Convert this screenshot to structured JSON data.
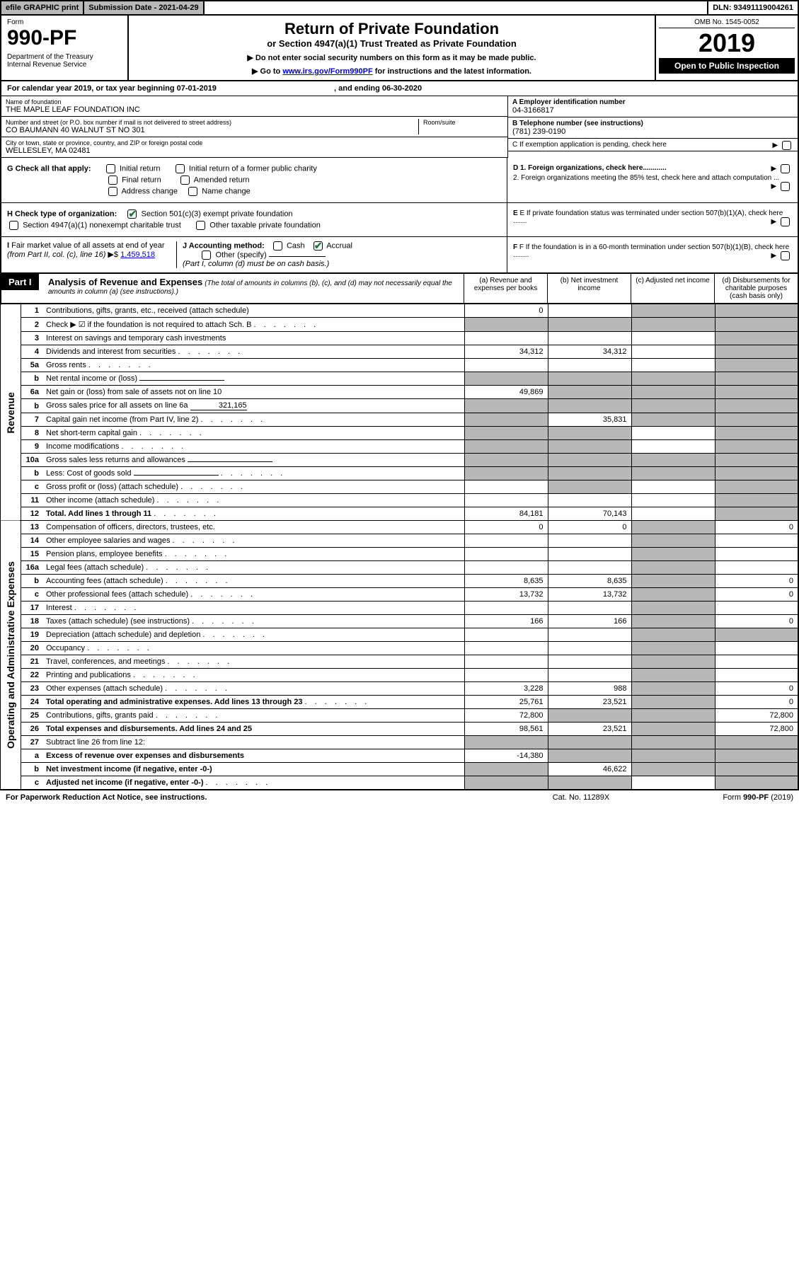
{
  "topbar": {
    "efile": "efile GRAPHIC print",
    "subdate": "Submission Date - 2021-04-29",
    "dln": "DLN: 93491119004261"
  },
  "header": {
    "form_label": "Form",
    "form_num": "990-PF",
    "dept": "Department of the Treasury\nInternal Revenue Service",
    "title": "Return of Private Foundation",
    "subtitle": "or Section 4947(a)(1) Trust Treated as Private Foundation",
    "note1": "▶ Do not enter social security numbers on this form as it may be made public.",
    "note2_prefix": "▶ Go to ",
    "note2_link": "www.irs.gov/Form990PF",
    "note2_suffix": " for instructions and the latest information.",
    "omb": "OMB No. 1545-0052",
    "year": "2019",
    "open": "Open to Public Inspection"
  },
  "calyear": {
    "prefix": "For calendar year 2019, or tax year beginning 07-01-2019",
    "suffix": ", and ending 06-30-2020"
  },
  "info": {
    "name_label": "Name of foundation",
    "name": "THE MAPLE LEAF FOUNDATION INC",
    "addr_label": "Number and street (or P.O. box number if mail is not delivered to street address)",
    "addr": "CO BAUMANN 40 WALNUT ST NO 301",
    "room_label": "Room/suite",
    "city_label": "City or town, state or province, country, and ZIP or foreign postal code",
    "city": "WELLESLEY, MA  02481",
    "ein_label": "A Employer identification number",
    "ein": "04-3166817",
    "phone_label": "B Telephone number (see instructions)",
    "phone": "(781) 239-0190",
    "c_label": "C If exemption application is pending, check here"
  },
  "checks": {
    "g_label": "G Check all that apply:",
    "g_opts": [
      "Initial return",
      "Initial return of a former public charity",
      "Final return",
      "Amended return",
      "Address change",
      "Name change"
    ],
    "h_label": "H Check type of organization:",
    "h_opt1": "Section 501(c)(3) exempt private foundation",
    "h_opt2": "Section 4947(a)(1) nonexempt charitable trust",
    "h_opt3": "Other taxable private foundation",
    "i_label": "I Fair market value of all assets at end of year (from Part II, col. (c), line 16) ▶$ ",
    "i_val": "1,459,518",
    "j_label": "J Accounting method:",
    "j_opts": [
      "Cash",
      "Accrual"
    ],
    "j_other": "Other (specify)",
    "j_note": "(Part I, column (d) must be on cash basis.)",
    "d1": "D 1. Foreign organizations, check here............",
    "d2": "2. Foreign organizations meeting the 85% test, check here and attach computation ...",
    "e": "E If private foundation status was terminated under section 507(b)(1)(A), check here .......",
    "f": "F If the foundation is in a 60-month termination under section 507(b)(1)(B), check here ........"
  },
  "part1": {
    "label": "Part I",
    "title": "Analysis of Revenue and Expenses",
    "note": "(The total of amounts in columns (b), (c), and (d) may not necessarily equal the amounts in column (a) (see instructions).)",
    "col_a": "(a)   Revenue and expenses per books",
    "col_b": "(b)  Net investment income",
    "col_c": "(c)  Adjusted net income",
    "col_d": "(d)  Disbursements for charitable purposes (cash basis only)"
  },
  "section_labels": {
    "revenue": "Revenue",
    "expenses": "Operating and Administrative Expenses"
  },
  "rows": [
    {
      "n": "1",
      "desc": "Contributions, gifts, grants, etc., received (attach schedule)",
      "a": "0",
      "b": "",
      "c": "s",
      "d": "s"
    },
    {
      "n": "2",
      "desc": "Check ▶ ☑ if the foundation is not required to attach Sch. B",
      "dots": true,
      "a": "s",
      "b": "s",
      "c": "s",
      "d": "s"
    },
    {
      "n": "3",
      "desc": "Interest on savings and temporary cash investments",
      "a": "",
      "b": "",
      "c": "",
      "d": "s"
    },
    {
      "n": "4",
      "desc": "Dividends and interest from securities",
      "dots": true,
      "a": "34,312",
      "b": "34,312",
      "c": "",
      "d": "s"
    },
    {
      "n": "5a",
      "desc": "Gross rents",
      "dots": true,
      "a": "",
      "b": "",
      "c": "",
      "d": "s"
    },
    {
      "n": "b",
      "desc": "Net rental income or (loss)",
      "inline": true,
      "a": "s",
      "b": "s",
      "c": "s",
      "d": "s"
    },
    {
      "n": "6a",
      "desc": "Net gain or (loss) from sale of assets not on line 10",
      "a": "49,869",
      "b": "s",
      "c": "s",
      "d": "s"
    },
    {
      "n": "b",
      "desc": "Gross sales price for all assets on line 6a",
      "inline_val": "321,165",
      "a": "s",
      "b": "s",
      "c": "s",
      "d": "s"
    },
    {
      "n": "7",
      "desc": "Capital gain net income (from Part IV, line 2)",
      "dots": true,
      "a": "s",
      "b": "35,831",
      "c": "s",
      "d": "s"
    },
    {
      "n": "8",
      "desc": "Net short-term capital gain",
      "dots": true,
      "a": "s",
      "b": "s",
      "c": "",
      "d": "s"
    },
    {
      "n": "9",
      "desc": "Income modifications",
      "dots": true,
      "a": "s",
      "b": "s",
      "c": "",
      "d": "s"
    },
    {
      "n": "10a",
      "desc": "Gross sales less returns and allowances",
      "inline": true,
      "a": "s",
      "b": "s",
      "c": "s",
      "d": "s"
    },
    {
      "n": "b",
      "desc": "Less: Cost of goods sold",
      "dots": true,
      "inline": true,
      "a": "s",
      "b": "s",
      "c": "s",
      "d": "s"
    },
    {
      "n": "c",
      "desc": "Gross profit or (loss) (attach schedule)",
      "dots": true,
      "a": "",
      "b": "s",
      "c": "",
      "d": "s"
    },
    {
      "n": "11",
      "desc": "Other income (attach schedule)",
      "dots": true,
      "a": "",
      "b": "",
      "c": "",
      "d": "s"
    },
    {
      "n": "12",
      "desc": "Total. Add lines 1 through 11",
      "bold": true,
      "dots": true,
      "a": "84,181",
      "b": "70,143",
      "c": "",
      "d": "s"
    },
    {
      "n": "13",
      "desc": "Compensation of officers, directors, trustees, etc.",
      "a": "0",
      "b": "0",
      "c": "s",
      "d": "0"
    },
    {
      "n": "14",
      "desc": "Other employee salaries and wages",
      "dots": true,
      "a": "",
      "b": "",
      "c": "s",
      "d": ""
    },
    {
      "n": "15",
      "desc": "Pension plans, employee benefits",
      "dots": true,
      "a": "",
      "b": "",
      "c": "s",
      "d": ""
    },
    {
      "n": "16a",
      "desc": "Legal fees (attach schedule)",
      "dots": true,
      "a": "",
      "b": "",
      "c": "s",
      "d": ""
    },
    {
      "n": "b",
      "desc": "Accounting fees (attach schedule)",
      "dots": true,
      "a": "8,635",
      "b": "8,635",
      "c": "s",
      "d": "0"
    },
    {
      "n": "c",
      "desc": "Other professional fees (attach schedule)",
      "dots": true,
      "a": "13,732",
      "b": "13,732",
      "c": "s",
      "d": "0"
    },
    {
      "n": "17",
      "desc": "Interest",
      "dots": true,
      "a": "",
      "b": "",
      "c": "s",
      "d": ""
    },
    {
      "n": "18",
      "desc": "Taxes (attach schedule) (see instructions)",
      "dots": true,
      "a": "166",
      "b": "166",
      "c": "s",
      "d": "0"
    },
    {
      "n": "19",
      "desc": "Depreciation (attach schedule) and depletion",
      "dots": true,
      "a": "",
      "b": "",
      "c": "s",
      "d": "s"
    },
    {
      "n": "20",
      "desc": "Occupancy",
      "dots": true,
      "a": "",
      "b": "",
      "c": "s",
      "d": ""
    },
    {
      "n": "21",
      "desc": "Travel, conferences, and meetings",
      "dots": true,
      "a": "",
      "b": "",
      "c": "s",
      "d": ""
    },
    {
      "n": "22",
      "desc": "Printing and publications",
      "dots": true,
      "a": "",
      "b": "",
      "c": "s",
      "d": ""
    },
    {
      "n": "23",
      "desc": "Other expenses (attach schedule)",
      "dots": true,
      "a": "3,228",
      "b": "988",
      "c": "s",
      "d": "0"
    },
    {
      "n": "24",
      "desc": "Total operating and administrative expenses. Add lines 13 through 23",
      "bold": true,
      "dots": true,
      "a": "25,761",
      "b": "23,521",
      "c": "s",
      "d": "0"
    },
    {
      "n": "25",
      "desc": "Contributions, gifts, grants paid",
      "dots": true,
      "a": "72,800",
      "b": "s",
      "c": "s",
      "d": "72,800"
    },
    {
      "n": "26",
      "desc": "Total expenses and disbursements. Add lines 24 and 25",
      "bold": true,
      "a": "98,561",
      "b": "23,521",
      "c": "s",
      "d": "72,800"
    },
    {
      "n": "27",
      "desc": "Subtract line 26 from line 12:",
      "a": "s",
      "b": "s",
      "c": "s",
      "d": "s"
    },
    {
      "n": "a",
      "desc": "Excess of revenue over expenses and disbursements",
      "bold": true,
      "a": "-14,380",
      "b": "s",
      "c": "s",
      "d": "s"
    },
    {
      "n": "b",
      "desc": "Net investment income (if negative, enter -0-)",
      "bold": true,
      "a": "s",
      "b": "46,622",
      "c": "s",
      "d": "s"
    },
    {
      "n": "c",
      "desc": "Adjusted net income (if negative, enter -0-)",
      "bold": true,
      "dots": true,
      "a": "s",
      "b": "s",
      "c": "",
      "d": "s"
    }
  ],
  "footer": {
    "left": "For Paperwork Reduction Act Notice, see instructions.",
    "mid": "Cat. No. 11289X",
    "right": "Form 990-PF (2019)"
  }
}
